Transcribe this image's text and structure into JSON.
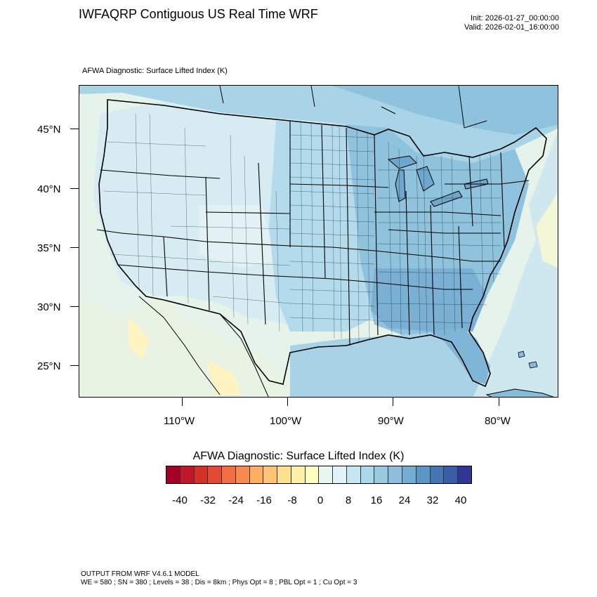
{
  "header": {
    "title": "IWFAQRP Contiguous US Real Time WRF",
    "init": "Init: 2026-01-27_00:00:00",
    "valid": "Valid: 2026-02-01_16:00:00"
  },
  "map": {
    "subtitle": "AFWA Diagnostic: Surface Lifted Index   (K)",
    "field": "Surface Lifted Index",
    "units": "K",
    "lat_labels": [
      "45°N",
      "40°N",
      "35°N",
      "30°N",
      "25°N"
    ],
    "lon_labels": [
      "110°W",
      "100°W",
      "90°W",
      "80°W"
    ],
    "colors": {
      "land_west": "#d9ecf3",
      "plains": "#9fcde4",
      "east": "#86bcd9",
      "southeast": "#74a9cf",
      "gulf": "#a8d3e6",
      "atlantic_warm": "#e8f4ec",
      "pacific": "#e6f3ea",
      "mexico_warm": "#fff3c2",
      "canada": "#8fc3dd",
      "border_line": "#000000"
    }
  },
  "colorbar": {
    "title": "AFWA Diagnostic: Surface Lifted Index  (K)",
    "labels": [
      "-40",
      "-32",
      "-24",
      "-16",
      "-8",
      "0",
      "8",
      "16",
      "24",
      "32",
      "40"
    ],
    "colors": [
      "#a50026",
      "#c1172a",
      "#d73027",
      "#e34a33",
      "#f46d43",
      "#f8894f",
      "#fdae61",
      "#fdc274",
      "#fee090",
      "#fff1a8",
      "#ffffbf",
      "#e8f6f0",
      "#e0f3f8",
      "#c5e6f0",
      "#abd9e9",
      "#98cae1",
      "#8ebedc",
      "#74add1",
      "#5b97c6",
      "#4575b4",
      "#3a5da8",
      "#313695"
    ]
  },
  "footer": {
    "line1": "OUTPUT FROM WRF V4.6.1 MODEL",
    "line2": "WE = 580 ; SN = 380 ; Levels = 38 ; Dis = 8km ; Phys Opt = 8 ; PBL Opt = 1 ; Cu Opt = 3"
  }
}
